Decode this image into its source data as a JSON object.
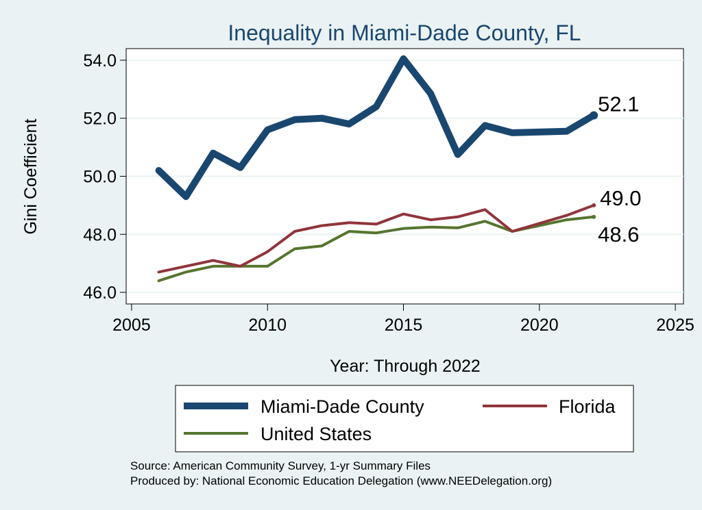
{
  "chart_data": {
    "type": "line",
    "title": "Inequality in Miami-Dade County, FL",
    "xlabel": "Year: Through 2022",
    "ylabel": "Gini Coefficient",
    "xlim": [
      2004.8,
      2025.3
    ],
    "ylim": [
      45.6,
      54.4
    ],
    "xticks": [
      2005,
      2010,
      2015,
      2020,
      2025
    ],
    "xtick_labels": [
      "2005",
      "2010",
      "2015",
      "2020",
      "2025"
    ],
    "yticks": [
      46,
      48,
      50,
      52,
      54
    ],
    "ytick_labels": [
      "46.0",
      "48.0",
      "50.0",
      "52.0",
      "54.0"
    ],
    "grid": true,
    "legend_position": "bottom",
    "x": [
      2006,
      2007,
      2008,
      2009,
      2010,
      2011,
      2012,
      2013,
      2014,
      2015,
      2016,
      2017,
      2018,
      2019,
      2021,
      2022
    ],
    "series": [
      {
        "name": "Miami-Dade County",
        "color": "#1a476f",
        "values": [
          50.2,
          49.3,
          50.8,
          50.3,
          51.6,
          51.95,
          52.0,
          51.8,
          52.4,
          54.05,
          52.85,
          50.75,
          51.75,
          51.5,
          51.55,
          52.1
        ],
        "end_label": "52.1"
      },
      {
        "name": "Florida",
        "color": "#90353b",
        "values": [
          46.7,
          46.9,
          47.1,
          46.9,
          47.4,
          48.1,
          48.3,
          48.4,
          48.35,
          48.7,
          48.5,
          48.6,
          48.85,
          48.1,
          48.65,
          49.0
        ],
        "end_label": "49.0"
      },
      {
        "name": "United States",
        "color": "#55752f",
        "values": [
          46.4,
          46.7,
          46.9,
          46.9,
          46.9,
          47.5,
          47.6,
          48.1,
          48.05,
          48.2,
          48.25,
          48.22,
          48.45,
          48.1,
          48.5,
          48.6
        ],
        "end_label": "48.6"
      }
    ],
    "annotations": {
      "source": "Source: American Community Survey, 1-yr Summary Files",
      "producer": "Produced by: National Economic Education Delegation (www.NEEDelegation.org)"
    }
  }
}
